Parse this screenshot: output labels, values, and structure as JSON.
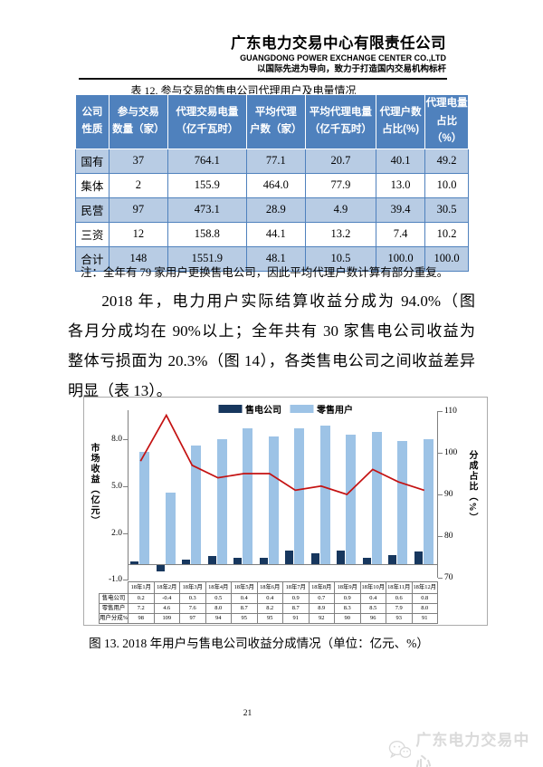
{
  "header": {
    "company_cn": "广东电力交易中心有限责任公司",
    "company_en": "GUANGDONG POWER EXCHANGE CENTER CO.,LTD",
    "slogan": "以国际先进为导向，致力于打造国内交易机构标杆"
  },
  "table12": {
    "title": "表 12. 参与交易的售电公司代理用户及电量情况",
    "columns": [
      "公司\n性质",
      "参与交易\n数量（家）",
      "代理交易电量\n（亿千瓦时）",
      "平均代理\n户数（家）",
      "平均代理电量\n（亿千瓦时）",
      "代理户数\n占比(%)",
      "代理电量\n占比（%）"
    ],
    "rows": [
      [
        "国有",
        "37",
        "764.1",
        "77.1",
        "20.7",
        "40.1",
        "49.2"
      ],
      [
        "集体",
        "2",
        "155.9",
        "464.0",
        "77.9",
        "13.0",
        "10.0"
      ],
      [
        "民营",
        "97",
        "473.1",
        "28.9",
        "4.9",
        "39.4",
        "30.5"
      ],
      [
        "三资",
        "12",
        "158.8",
        "44.1",
        "13.2",
        "7.4",
        "10.2"
      ],
      [
        "合计",
        "148",
        "1551.9",
        "48.1",
        "10.5",
        "100.0",
        "100.0"
      ]
    ],
    "note": "注：全年有 79 家用户更换售电公司，因此平均代理户数计算有部分重复。"
  },
  "paragraph": {
    "line1": "2018 年，电力用户实际结算收益分成为 94.0%（图 13），",
    "line2": "各月分成均在 90%以上；全年共有 30 家售电公司收益为负，",
    "line3": "整体亏损面为 20.3%（图 14），各类售电公司之间收益差异",
    "line4": "明显（表 13）。"
  },
  "chart_data": {
    "type": "bar+line",
    "title": "图 13. 2018 年用户与售电公司收益分成情况（单位：亿元、%）",
    "categories": [
      "18年1月",
      "18年2月",
      "18年3月",
      "18年4月",
      "18年5月",
      "18年6月",
      "18年7月",
      "18年8月",
      "18年9月",
      "18年10月",
      "18年11月",
      "18年12月"
    ],
    "series": [
      {
        "name": "售电公司",
        "type": "bar",
        "axis": "left",
        "color": "#17375E",
        "values": [
          0.2,
          -0.4,
          0.3,
          0.5,
          0.4,
          0.4,
          0.9,
          0.7,
          0.9,
          0.4,
          0.6,
          0.8
        ]
      },
      {
        "name": "零售用户",
        "type": "bar",
        "axis": "left",
        "color": "#9DC3E6",
        "values": [
          7.2,
          4.6,
          7.6,
          8.0,
          8.7,
          8.2,
          8.7,
          8.9,
          8.3,
          8.5,
          7.9,
          8.0
        ]
      },
      {
        "name": "用户分成%",
        "type": "line",
        "axis": "right",
        "color": "#C41212",
        "values": [
          98,
          109,
          97,
          94,
          95,
          95,
          91,
          92,
          90,
          96,
          93,
          91
        ]
      }
    ],
    "left_axis": {
      "label": "市场收益（亿元）",
      "ticks": [
        8,
        5,
        2,
        -1
      ],
      "min": -1,
      "max": 10
    },
    "right_axis": {
      "label": "分成占比（%）",
      "ticks": [
        110,
        100,
        90,
        80,
        70
      ],
      "min": 70,
      "max": 110
    },
    "legend": [
      "售电公司",
      "零售用户"
    ],
    "legend_position": "top",
    "grid": false
  },
  "figure_caption": "图 13. 2018 年用户与售电公司收益分成情况（单位：亿元、%）",
  "page_number": "21",
  "watermark": {
    "text": "广东电力交易中心"
  },
  "colors": {
    "table_header_bg": "#4F81BD",
    "table_row_alt_bg": "#B8CCE4",
    "bar_dark": "#17375E",
    "bar_light": "#9DC3E6",
    "line_red": "#C41212"
  }
}
